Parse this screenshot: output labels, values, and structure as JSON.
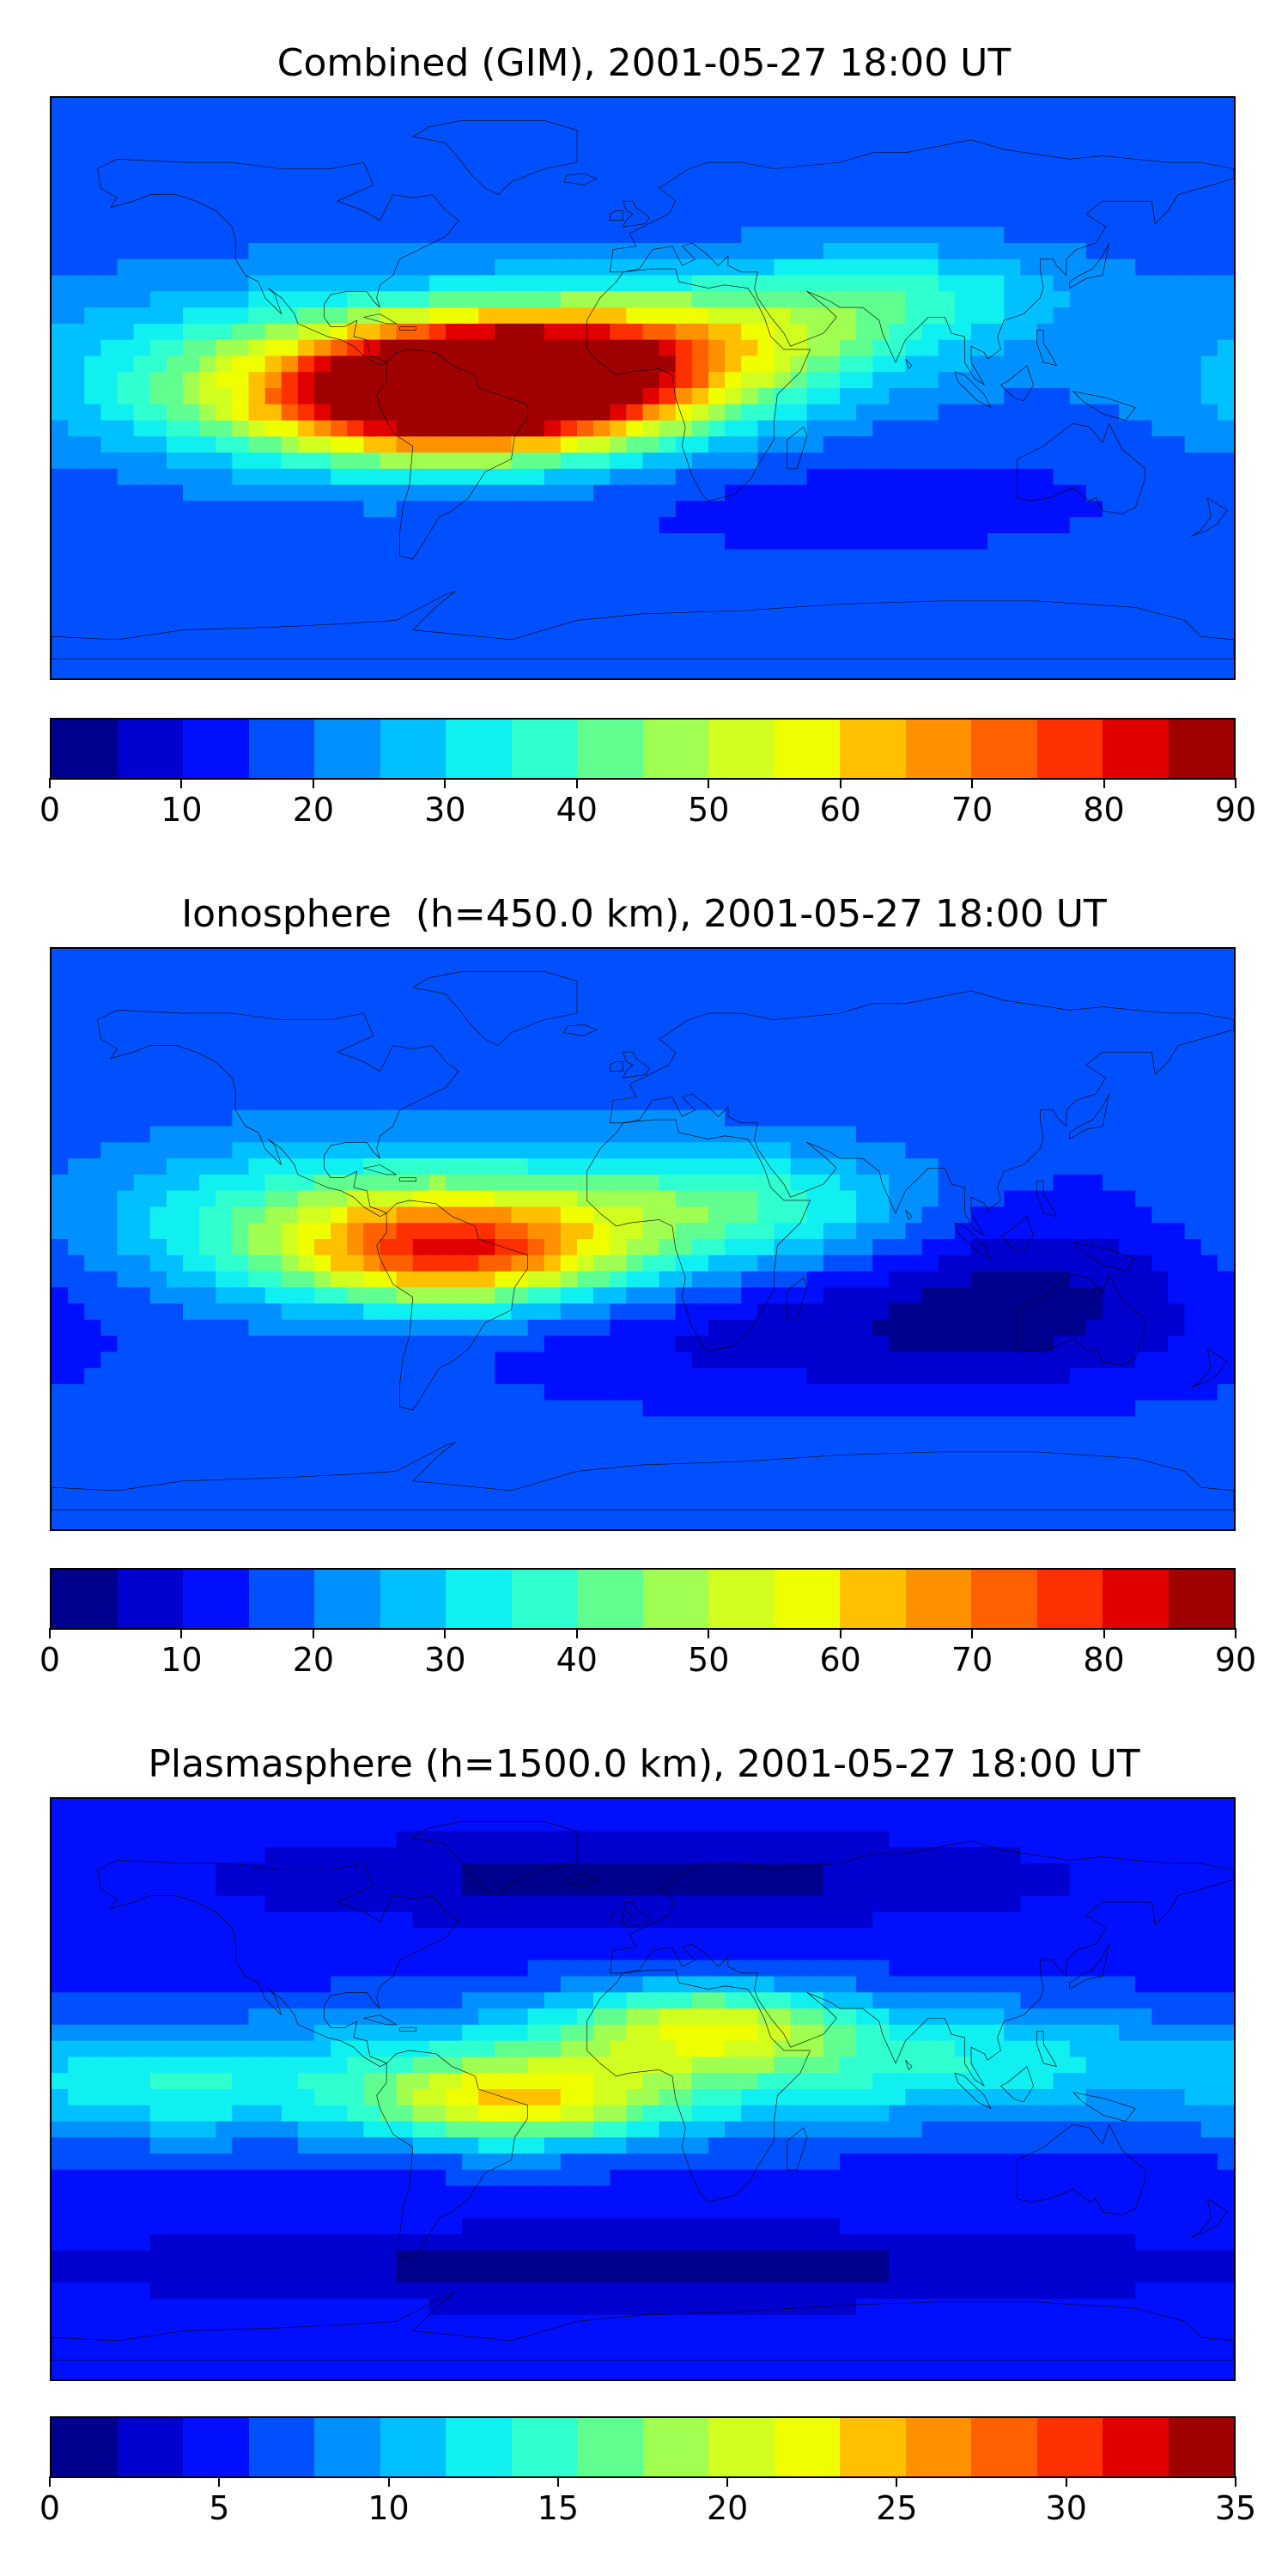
{
  "colormap": [
    "#00008f",
    "#0000cf",
    "#0010ff",
    "#0050ff",
    "#0090ff",
    "#00c0ff",
    "#10f0f0",
    "#30ffd0",
    "#60ff90",
    "#a0ff50",
    "#d0ff20",
    "#f0ff00",
    "#ffc000",
    "#ff9000",
    "#ff6000",
    "#ff3000",
    "#e00000",
    "#9f0000"
  ],
  "panels": [
    {
      "title": "Combined (GIM), 2001-05-27 18:00 UT",
      "colorbar": {
        "min": 0,
        "max": 90,
        "tick_labels": [
          "0",
          "10",
          "20",
          "30",
          "40",
          "50",
          "60",
          "70",
          "80",
          "90"
        ],
        "tick_values": [
          0,
          10,
          20,
          30,
          40,
          50,
          60,
          70,
          80,
          90
        ]
      },
      "field": {
        "background_level": 3,
        "features": [
          {
            "lon": -80,
            "lat": 5,
            "peak_level": 9,
            "lon_width": 130,
            "lat_width": 35
          },
          {
            "lon": -55,
            "lat": -5,
            "peak_level": 14,
            "lon_width": 90,
            "lat_width": 25
          },
          {
            "lon": -40,
            "lat": 5,
            "peak_level": 13,
            "lon_width": 70,
            "lat_width": 22
          },
          {
            "lon": 20,
            "lat": 15,
            "peak_level": 9,
            "lon_width": 90,
            "lat_width": 25
          },
          {
            "lon": 80,
            "lat": 30,
            "peak_level": 6,
            "lon_width": 70,
            "lat_width": 20
          },
          {
            "lon": 60,
            "lat": -35,
            "peak_level": 2,
            "lon_width": 140,
            "lat_width": 25
          }
        ]
      }
    },
    {
      "title": "Ionosphere  (h=450.0 km), 2001-05-27 18:00 UT",
      "colorbar": {
        "min": 0,
        "max": 90,
        "tick_labels": [
          "0",
          "10",
          "20",
          "30",
          "40",
          "50",
          "60",
          "70",
          "80",
          "90"
        ],
        "tick_values": [
          0,
          10,
          20,
          30,
          40,
          50,
          60,
          70,
          80,
          90
        ]
      },
      "field": {
        "background_level": 3,
        "features": [
          {
            "lon": -75,
            "lat": 5,
            "peak_level": 9,
            "lon_width": 110,
            "lat_width": 32
          },
          {
            "lon": -55,
            "lat": -5,
            "peak_level": 11,
            "lon_width": 70,
            "lat_width": 22
          },
          {
            "lon": 30,
            "lat": 10,
            "peak_level": 7,
            "lon_width": 80,
            "lat_width": 25
          },
          {
            "lon": 60,
            "lat": -30,
            "peak_level": 1,
            "lon_width": 160,
            "lat_width": 30
          },
          {
            "lon": 120,
            "lat": -10,
            "peak_level": 1,
            "lon_width": 80,
            "lat_width": 40
          }
        ]
      }
    },
    {
      "title": "Plasmasphere (h=1500.0 km), 2001-05-27 18:00 UT",
      "colorbar": {
        "min": 0,
        "max": 35,
        "tick_labels": [
          "0",
          "5",
          "10",
          "15",
          "20",
          "25",
          "30",
          "35"
        ],
        "tick_values": [
          0,
          5,
          10,
          15,
          20,
          25,
          30,
          35
        ]
      },
      "field": {
        "background_level": 2,
        "features": [
          {
            "lon": -20,
            "lat": 5,
            "peak_level": 7,
            "lon_width": 160,
            "lat_width": 28
          },
          {
            "lon": 20,
            "lat": 20,
            "peak_level": 8,
            "lon_width": 60,
            "lat_width": 18
          },
          {
            "lon": -40,
            "lat": -5,
            "peak_level": 8,
            "lon_width": 60,
            "lat_width": 18
          },
          {
            "lon": 110,
            "lat": 10,
            "peak_level": 5,
            "lon_width": 90,
            "lat_width": 25
          },
          {
            "lon": -150,
            "lat": 0,
            "peak_level": 5,
            "lon_width": 70,
            "lat_width": 25
          },
          {
            "lon": 0,
            "lat": 65,
            "peak_level": 0,
            "lon_width": 160,
            "lat_width": 18
          },
          {
            "lon": 0,
            "lat": -55,
            "peak_level": 0,
            "lon_width": 220,
            "lat_width": 16
          }
        ]
      }
    }
  ]
}
